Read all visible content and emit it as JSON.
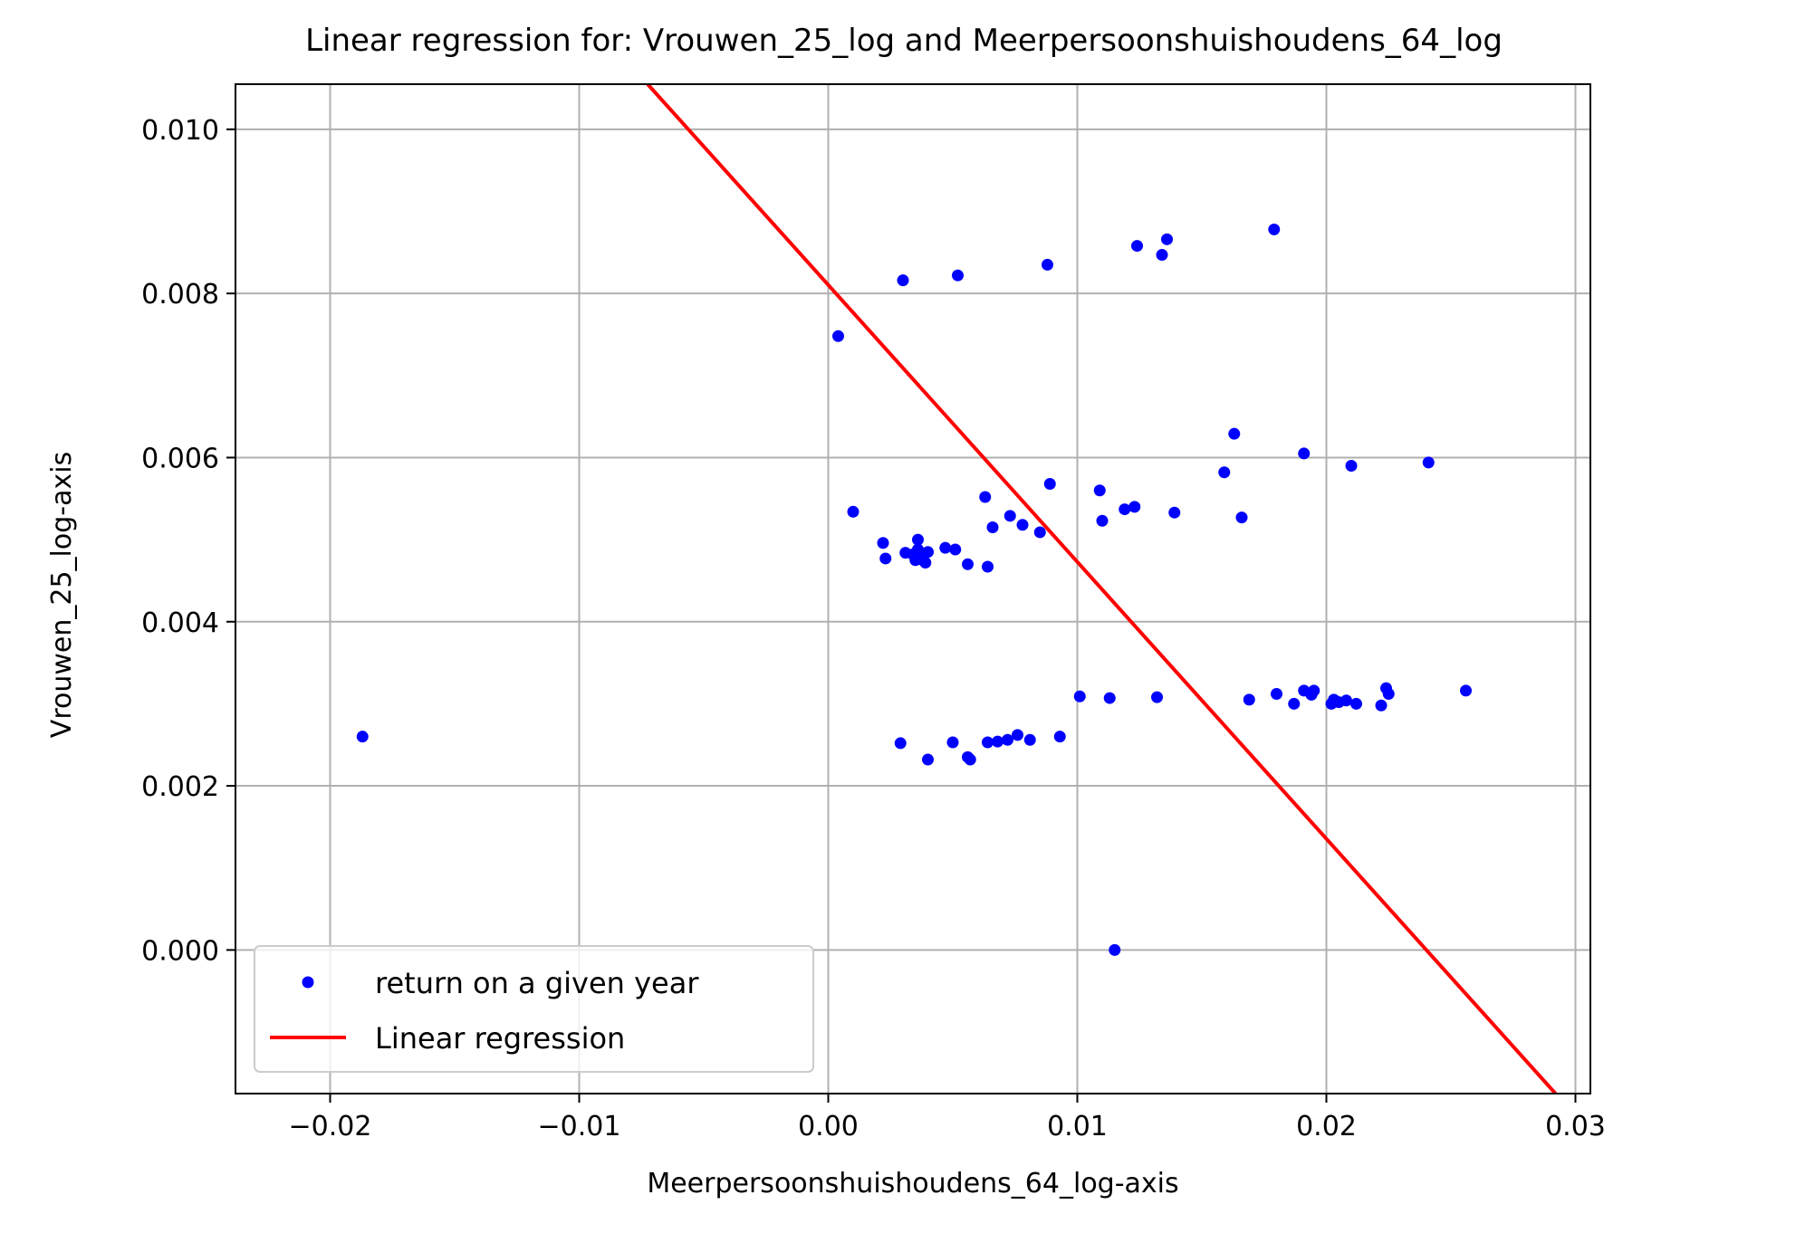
{
  "chart_data": {
    "type": "scatter",
    "title": "Linear regression for: Vrouwen_25_log and Meerpersoonshuishoudens_64_log",
    "xlabel": "Meerpersoonshuishoudens_64_log-axis",
    "ylabel": "Vrouwen_25_log-axis",
    "xlim": [
      -0.0238,
      0.0306
    ],
    "ylim": [
      -0.00175,
      0.01055
    ],
    "x_ticks": [
      -0.02,
      -0.01,
      0.0,
      0.01,
      0.02,
      0.03
    ],
    "x_tick_labels": [
      "−0.02",
      "−0.01",
      "0.00",
      "0.01",
      "0.02",
      "0.03"
    ],
    "y_ticks": [
      0.0,
      0.002,
      0.004,
      0.006,
      0.008,
      0.01
    ],
    "y_tick_labels": [
      "0.000",
      "0.002",
      "0.004",
      "0.006",
      "0.008",
      "0.010"
    ],
    "grid": true,
    "legend_position": "lower-left",
    "series": [
      {
        "name": "return on a given year",
        "kind": "scatter",
        "color": "#0000ff",
        "points": [
          [
            -0.0187,
            0.0026
          ],
          [
            0.0004,
            0.00748
          ],
          [
            0.003,
            0.00816
          ],
          [
            0.0052,
            0.00822
          ],
          [
            0.0088,
            0.00835
          ],
          [
            0.0124,
            0.00858
          ],
          [
            0.0134,
            0.00847
          ],
          [
            0.0136,
            0.00866
          ],
          [
            0.0179,
            0.00878
          ],
          [
            0.001,
            0.00534
          ],
          [
            0.0022,
            0.00496
          ],
          [
            0.0023,
            0.00477
          ],
          [
            0.0031,
            0.00484
          ],
          [
            0.0034,
            0.00482
          ],
          [
            0.0035,
            0.00475
          ],
          [
            0.0036,
            0.00488
          ],
          [
            0.0036,
            0.005
          ],
          [
            0.0037,
            0.00478
          ],
          [
            0.0038,
            0.00475
          ],
          [
            0.0039,
            0.00472
          ],
          [
            0.004,
            0.00485
          ],
          [
            0.0047,
            0.0049
          ],
          [
            0.0051,
            0.00488
          ],
          [
            0.0056,
            0.0047
          ],
          [
            0.0063,
            0.00552
          ],
          [
            0.0064,
            0.00467
          ],
          [
            0.0066,
            0.00515
          ],
          [
            0.0073,
            0.00529
          ],
          [
            0.0078,
            0.00518
          ],
          [
            0.0085,
            0.00509
          ],
          [
            0.0089,
            0.00568
          ],
          [
            0.0109,
            0.0056
          ],
          [
            0.011,
            0.00523
          ],
          [
            0.0119,
            0.00537
          ],
          [
            0.0123,
            0.0054
          ],
          [
            0.0139,
            0.00533
          ],
          [
            0.0159,
            0.00582
          ],
          [
            0.0163,
            0.00629
          ],
          [
            0.0166,
            0.00527
          ],
          [
            0.0191,
            0.00605
          ],
          [
            0.021,
            0.0059
          ],
          [
            0.0241,
            0.00594
          ],
          [
            0.0029,
            0.00252
          ],
          [
            0.004,
            0.00232
          ],
          [
            0.005,
            0.00253
          ],
          [
            0.0056,
            0.00235
          ],
          [
            0.0057,
            0.00232
          ],
          [
            0.0064,
            0.00253
          ],
          [
            0.0068,
            0.00254
          ],
          [
            0.0072,
            0.00256
          ],
          [
            0.0076,
            0.00262
          ],
          [
            0.0081,
            0.00256
          ],
          [
            0.0093,
            0.0026
          ],
          [
            0.0101,
            0.00309
          ],
          [
            0.0113,
            0.00307
          ],
          [
            0.0115,
            0.0
          ],
          [
            0.0132,
            0.00308
          ],
          [
            0.0169,
            0.00305
          ],
          [
            0.018,
            0.00312
          ],
          [
            0.0187,
            0.003
          ],
          [
            0.0191,
            0.00316
          ],
          [
            0.0194,
            0.00311
          ],
          [
            0.0195,
            0.00316
          ],
          [
            0.0202,
            0.003
          ],
          [
            0.0203,
            0.00305
          ],
          [
            0.0205,
            0.00302
          ],
          [
            0.0208,
            0.00304
          ],
          [
            0.0212,
            0.003
          ],
          [
            0.0222,
            0.00298
          ],
          [
            0.0224,
            0.00319
          ],
          [
            0.0225,
            0.00312
          ],
          [
            0.0256,
            0.00316
          ]
        ]
      },
      {
        "name": "Linear regression",
        "kind": "line",
        "color": "#ff0000",
        "points": [
          [
            -0.00725,
            0.01055
          ],
          [
            0.0292,
            -0.00175
          ]
        ]
      }
    ]
  }
}
